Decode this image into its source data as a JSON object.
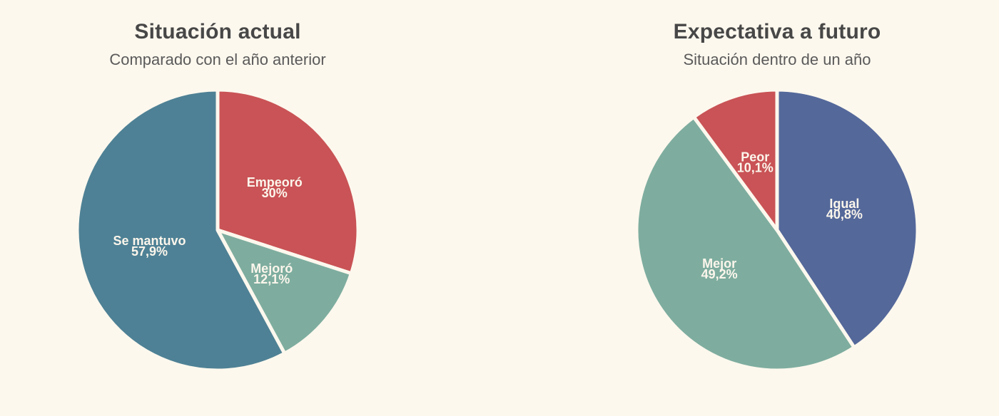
{
  "page": {
    "background_color": "#fdf8ee"
  },
  "chart_data": [
    {
      "type": "pie",
      "title": "Situación actual",
      "subtitle": "Comparado con el año anterior",
      "start_angle_deg": 0,
      "direction": "clockwise",
      "label_position": "inside",
      "label_radius_fraction": 0.5,
      "label_color": "#fcf6ec",
      "slice_gap_color": "#fdf8ee",
      "slices": [
        {
          "label": "Empeoró",
          "value": 30,
          "display": "30%",
          "color": "#c95356"
        },
        {
          "label": "Mejoró",
          "value": 12.1,
          "display": "12,1%",
          "color": "#7ead9f"
        },
        {
          "label": "Se mantuvo",
          "value": 57.9,
          "display": "57,9%",
          "color": "#4e8195"
        }
      ]
    },
    {
      "type": "pie",
      "title": "Expectativa a futuro",
      "subtitle": "Situación dentro de un año",
      "start_angle_deg": 0,
      "direction": "clockwise",
      "label_position": "inside",
      "label_radius_fraction": 0.5,
      "label_color": "#fcf6ec",
      "slice_gap_color": "#fdf8ee",
      "slices": [
        {
          "label": "Igual",
          "value": 40.8,
          "display": "40,8%",
          "color": "#54689a"
        },
        {
          "label": "Mejor",
          "value": 49.2,
          "display": "49,2%",
          "color": "#7ead9f"
        },
        {
          "label": "Peor",
          "value": 10.1,
          "display": "10,1%",
          "color": "#c95356"
        }
      ]
    }
  ]
}
